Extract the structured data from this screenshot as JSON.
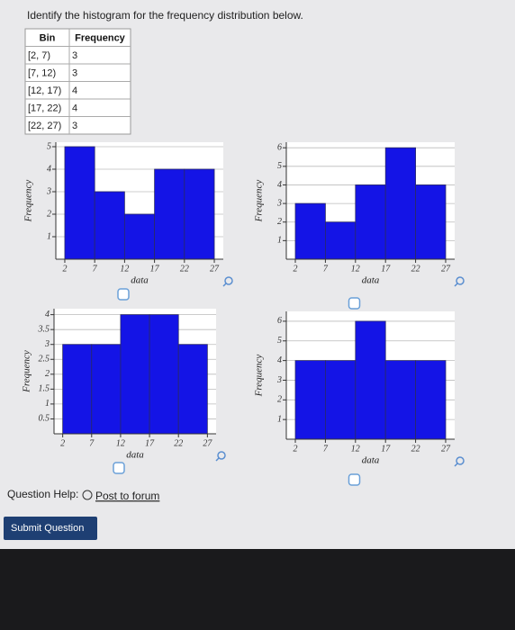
{
  "question": "Identify the histogram for the frequency distribution below.",
  "table": {
    "columns": [
      "Bin",
      "Frequency"
    ],
    "rows": [
      [
        "[2, 7)",
        3
      ],
      [
        "[7, 12)",
        3
      ],
      [
        "[12, 17)",
        4
      ],
      [
        "[17, 22)",
        4
      ],
      [
        "[22, 27)",
        3
      ]
    ]
  },
  "chart_data": [
    {
      "type": "histogram",
      "bins": [
        2,
        7,
        12,
        17,
        22,
        27
      ],
      "values": [
        5,
        3,
        2,
        4,
        4
      ],
      "color": "#1414e6",
      "xlim": [
        0.5,
        28.5
      ],
      "xticks": [
        2,
        7,
        12,
        17,
        22,
        27
      ],
      "ylim": [
        0,
        5.2
      ],
      "yticks": [
        1,
        2,
        3,
        4,
        5
      ],
      "xlabel": "data",
      "ylabel": "Frequency",
      "grid": true
    },
    {
      "type": "histogram",
      "bins": [
        2,
        7,
        12,
        17,
        22,
        27
      ],
      "values": [
        3,
        2,
        4,
        6,
        4
      ],
      "color": "#1414e6",
      "xlim": [
        0.5,
        28.5
      ],
      "xticks": [
        2,
        7,
        12,
        17,
        22,
        27
      ],
      "ylim": [
        0,
        6.3
      ],
      "yticks": [
        1,
        2,
        3,
        4,
        5,
        6
      ],
      "xlabel": "data",
      "ylabel": "Frequency",
      "grid": true
    },
    {
      "type": "histogram",
      "bins": [
        2,
        7,
        12,
        17,
        22,
        27
      ],
      "values": [
        3,
        3,
        4,
        4,
        3
      ],
      "color": "#1414e6",
      "xlim": [
        0.5,
        28.5
      ],
      "xticks": [
        2,
        7,
        12,
        17,
        22,
        27
      ],
      "ylim": [
        0,
        4.2
      ],
      "yticks": [
        0.5,
        1,
        1.5,
        2,
        2.5,
        3,
        3.5,
        4
      ],
      "xlabel": "data",
      "ylabel": "Frequency",
      "grid": true
    },
    {
      "type": "histogram",
      "bins": [
        2,
        7,
        12,
        17,
        22,
        27
      ],
      "values": [
        4,
        4,
        6,
        4,
        4
      ],
      "color": "#1414e6",
      "xlim": [
        0.5,
        28.5
      ],
      "xticks": [
        2,
        7,
        12,
        17,
        22,
        27
      ],
      "ylim": [
        0,
        6.5
      ],
      "yticks": [
        1,
        2,
        3,
        4,
        5,
        6
      ],
      "xlabel": "data",
      "ylabel": "Frequency",
      "grid": true
    }
  ],
  "help": {
    "label": "Question Help:",
    "link": "Post to forum"
  },
  "button": "Submit Question"
}
